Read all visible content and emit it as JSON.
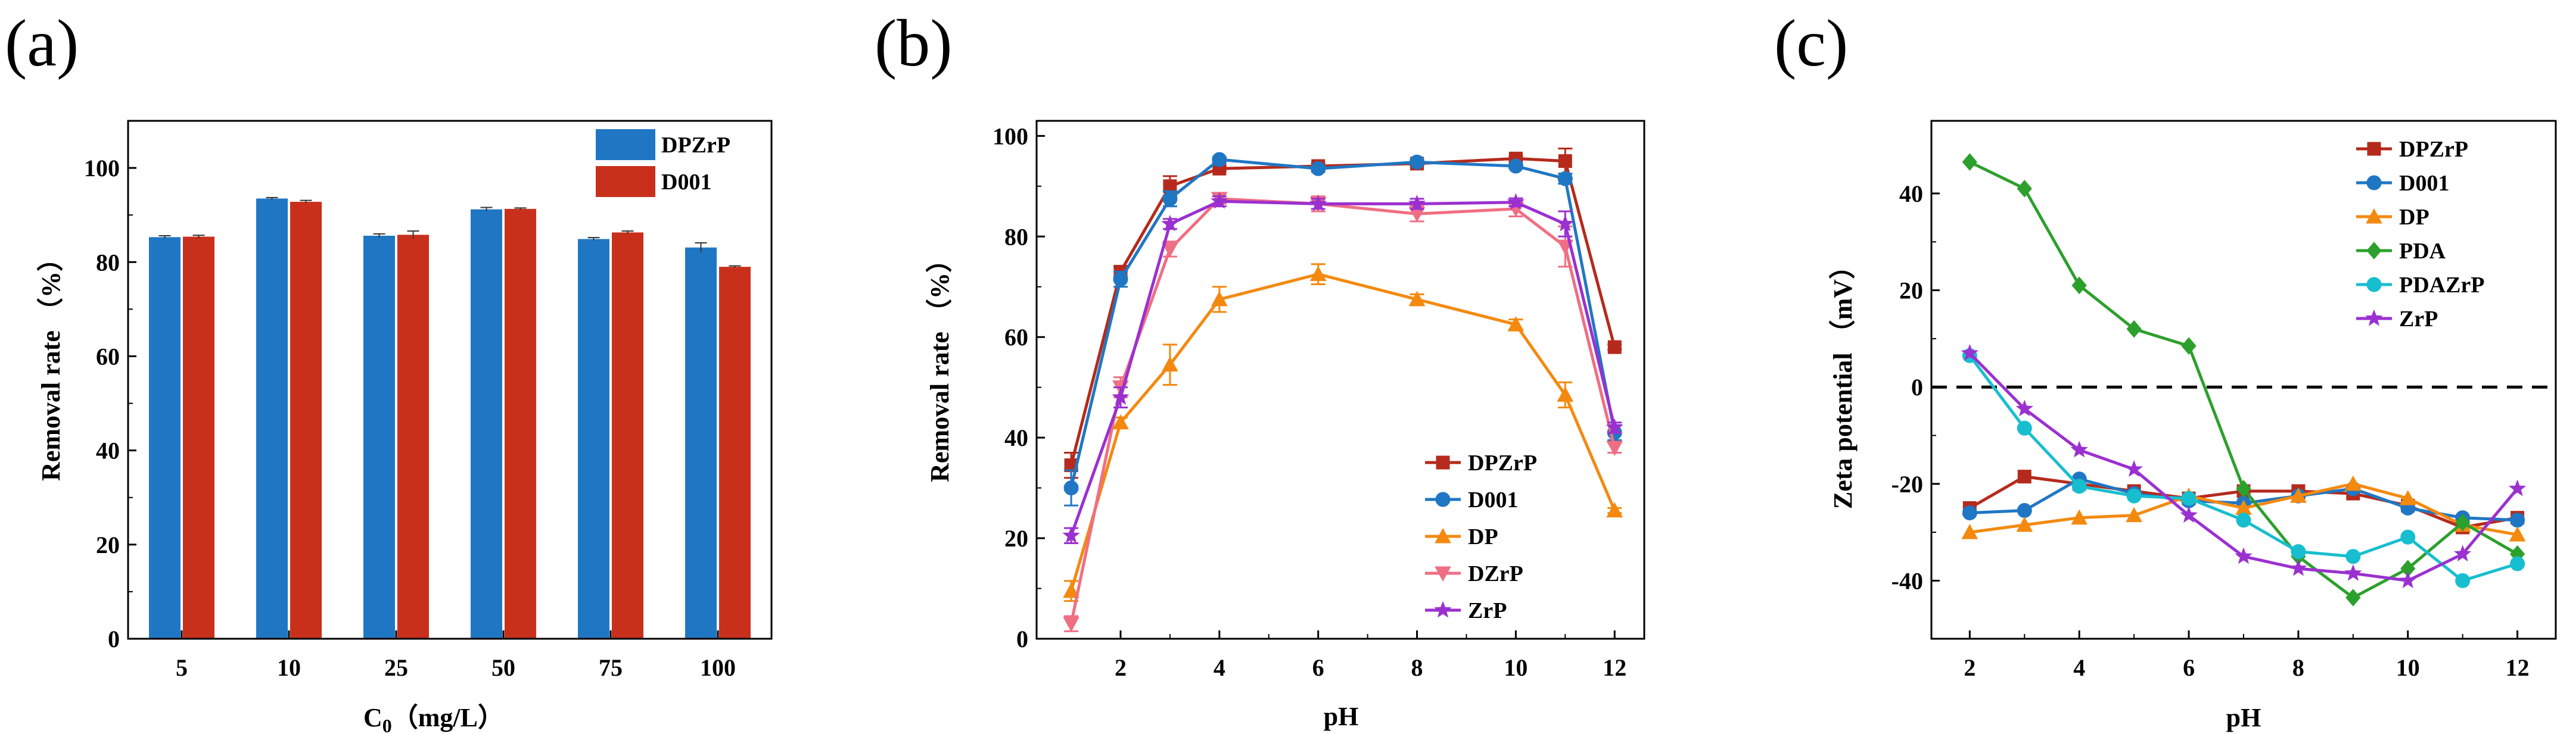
{
  "panels": [
    {
      "id": "a",
      "panel_label": "(a)",
      "xlabel_main": "C",
      "xlabel_sub": "0",
      "xlabel_rest": "（mg/L）",
      "ylabel": "Removal rate （%）",
      "legend": [
        "DPZrP",
        "D001"
      ]
    },
    {
      "id": "b",
      "panel_label": "(b)",
      "xlabel": "pH",
      "ylabel": "Removal rate （%）",
      "legend": [
        "DPZrP",
        "D001",
        "DP",
        "DZrP",
        "ZrP"
      ]
    },
    {
      "id": "c",
      "panel_label": "(c)",
      "xlabel": "pH",
      "ylabel": "Zeta potential （mV）",
      "legend": [
        "DPZrP",
        "D001",
        "DP",
        "PDA",
        "PDAZrP",
        "ZrP"
      ]
    }
  ],
  "chart_data": [
    {
      "type": "bar",
      "title": "(a)",
      "categories": [
        "5",
        "10",
        "25",
        "50",
        "75",
        "100"
      ],
      "series": [
        {
          "name": "DPZrP",
          "color": "#1f77c4",
          "values": [
            85.3,
            93.5,
            85.6,
            91.2,
            84.9,
            83.1
          ],
          "errors": [
            0.3,
            0.2,
            0.4,
            0.4,
            0.3,
            1.0
          ]
        },
        {
          "name": "D001",
          "color": "#c9301c",
          "values": [
            85.4,
            92.8,
            85.8,
            91.3,
            86.3,
            79.0
          ],
          "errors": [
            0.3,
            0.3,
            0.8,
            0.2,
            0.3,
            0.2
          ]
        }
      ],
      "xlabel": "C0 （mg/L）",
      "ylabel": "Removal rate （%）",
      "ylim": [
        0,
        110
      ],
      "yticks": [
        0,
        20,
        40,
        60,
        80,
        100
      ],
      "legend_position": "top-right"
    },
    {
      "type": "line",
      "title": "(b)",
      "x": [
        1,
        2,
        3,
        4,
        6,
        8,
        10,
        11,
        12
      ],
      "series": [
        {
          "name": "DPZrP",
          "color": "#b52a1c",
          "marker": "square",
          "values": [
            34.5,
            73.0,
            90.0,
            93.5,
            94.0,
            94.5,
            95.5,
            95.0,
            58.0
          ],
          "errors": [
            2.5,
            1.0,
            2.0,
            0.5,
            0.5,
            0.5,
            0.5,
            2.5,
            0.5
          ]
        },
        {
          "name": "D001",
          "color": "#1f77c4",
          "marker": "circle",
          "values": [
            30.0,
            71.5,
            87.5,
            95.3,
            93.5,
            94.8,
            94.0,
            91.5,
            41.0
          ],
          "errors": [
            3.5,
            1.5,
            1.5,
            0.5,
            0.5,
            0.5,
            0.5,
            1.0,
            1.5
          ]
        },
        {
          "name": "DP",
          "color": "#f4890f",
          "marker": "triangle-up",
          "values": [
            9.5,
            43.0,
            54.5,
            67.5,
            72.5,
            67.5,
            62.5,
            48.5,
            25.5
          ],
          "errors": [
            2.0,
            1.0,
            4.0,
            2.5,
            2.0,
            1.0,
            1.0,
            2.5,
            0.5
          ]
        },
        {
          "name": "DZrP",
          "color": "#f06e83",
          "marker": "triangle-down",
          "values": [
            3.0,
            50.0,
            77.5,
            87.5,
            86.5,
            84.5,
            85.5,
            78.0,
            38.0
          ],
          "errors": [
            1.5,
            2.0,
            1.5,
            1.0,
            1.5,
            1.5,
            1.5,
            4.0,
            1.0
          ]
        },
        {
          "name": "ZrP",
          "color": "#9b30d0",
          "marker": "star",
          "values": [
            20.5,
            48.0,
            82.5,
            87.0,
            86.5,
            86.5,
            86.8,
            82.5,
            42.0
          ],
          "errors": [
            1.5,
            2.0,
            1.0,
            1.0,
            1.0,
            1.0,
            0.8,
            2.5,
            1.0
          ]
        }
      ],
      "xlabel": "pH",
      "ylabel": "Removal rate （%）",
      "xlim": [
        0.3,
        12.6
      ],
      "ylim": [
        0,
        103
      ],
      "xticks": [
        2,
        4,
        6,
        8,
        10,
        12
      ],
      "yticks": [
        0,
        20,
        40,
        60,
        80,
        100
      ],
      "legend_position": "bottom-right"
    },
    {
      "type": "line",
      "title": "(c)",
      "x": [
        2,
        3,
        4,
        5,
        6,
        7,
        8,
        9,
        10,
        11,
        12
      ],
      "series": [
        {
          "name": "DPZrP",
          "color": "#b52a1c",
          "marker": "square",
          "values": [
            -25,
            -18.5,
            -20,
            -21.5,
            -23,
            -21.5,
            -21.5,
            -22,
            -24.5,
            -29,
            -27
          ]
        },
        {
          "name": "D001",
          "color": "#1f77c4",
          "marker": "circle",
          "values": [
            -26,
            -25.5,
            -19,
            -22,
            -23.5,
            -24,
            -22.5,
            -21,
            -25,
            -27,
            -27.5
          ]
        },
        {
          "name": "DP",
          "color": "#f4890f",
          "marker": "triangle-up",
          "values": [
            -30,
            -28.5,
            -27,
            -26.5,
            -22.5,
            -25,
            -22.5,
            -20,
            -23,
            -28.5,
            -30.5
          ]
        },
        {
          "name": "PDA",
          "color": "#2ca02c",
          "marker": "diamond",
          "values": [
            46.5,
            41,
            21,
            12,
            8.5,
            -21,
            -35,
            -43.5,
            -37.5,
            -28,
            -34.5
          ]
        },
        {
          "name": "PDAZrP",
          "color": "#17becf",
          "marker": "circle",
          "values": [
            6.5,
            -8.5,
            -20.5,
            -22.5,
            -23,
            -27.5,
            -34,
            -35,
            -31,
            -40,
            -36.5
          ]
        },
        {
          "name": "ZrP",
          "color": "#9b30d0",
          "marker": "star",
          "values": [
            7,
            -4.5,
            -13,
            -17,
            -26.5,
            -35,
            -37.5,
            -38.5,
            -40,
            -34.5,
            -21
          ]
        }
      ],
      "reference_line": {
        "y": 0,
        "style": "dashed",
        "color": "#000000"
      },
      "xlabel": "pH",
      "ylabel": "Zeta potential （mV）",
      "xlim": [
        1.3,
        12.7
      ],
      "ylim": [
        -52,
        55
      ],
      "xticks": [
        2,
        4,
        6,
        8,
        10,
        12
      ],
      "yticks": [
        -40,
        -20,
        0,
        20,
        40
      ],
      "legend_position": "top-right"
    }
  ]
}
